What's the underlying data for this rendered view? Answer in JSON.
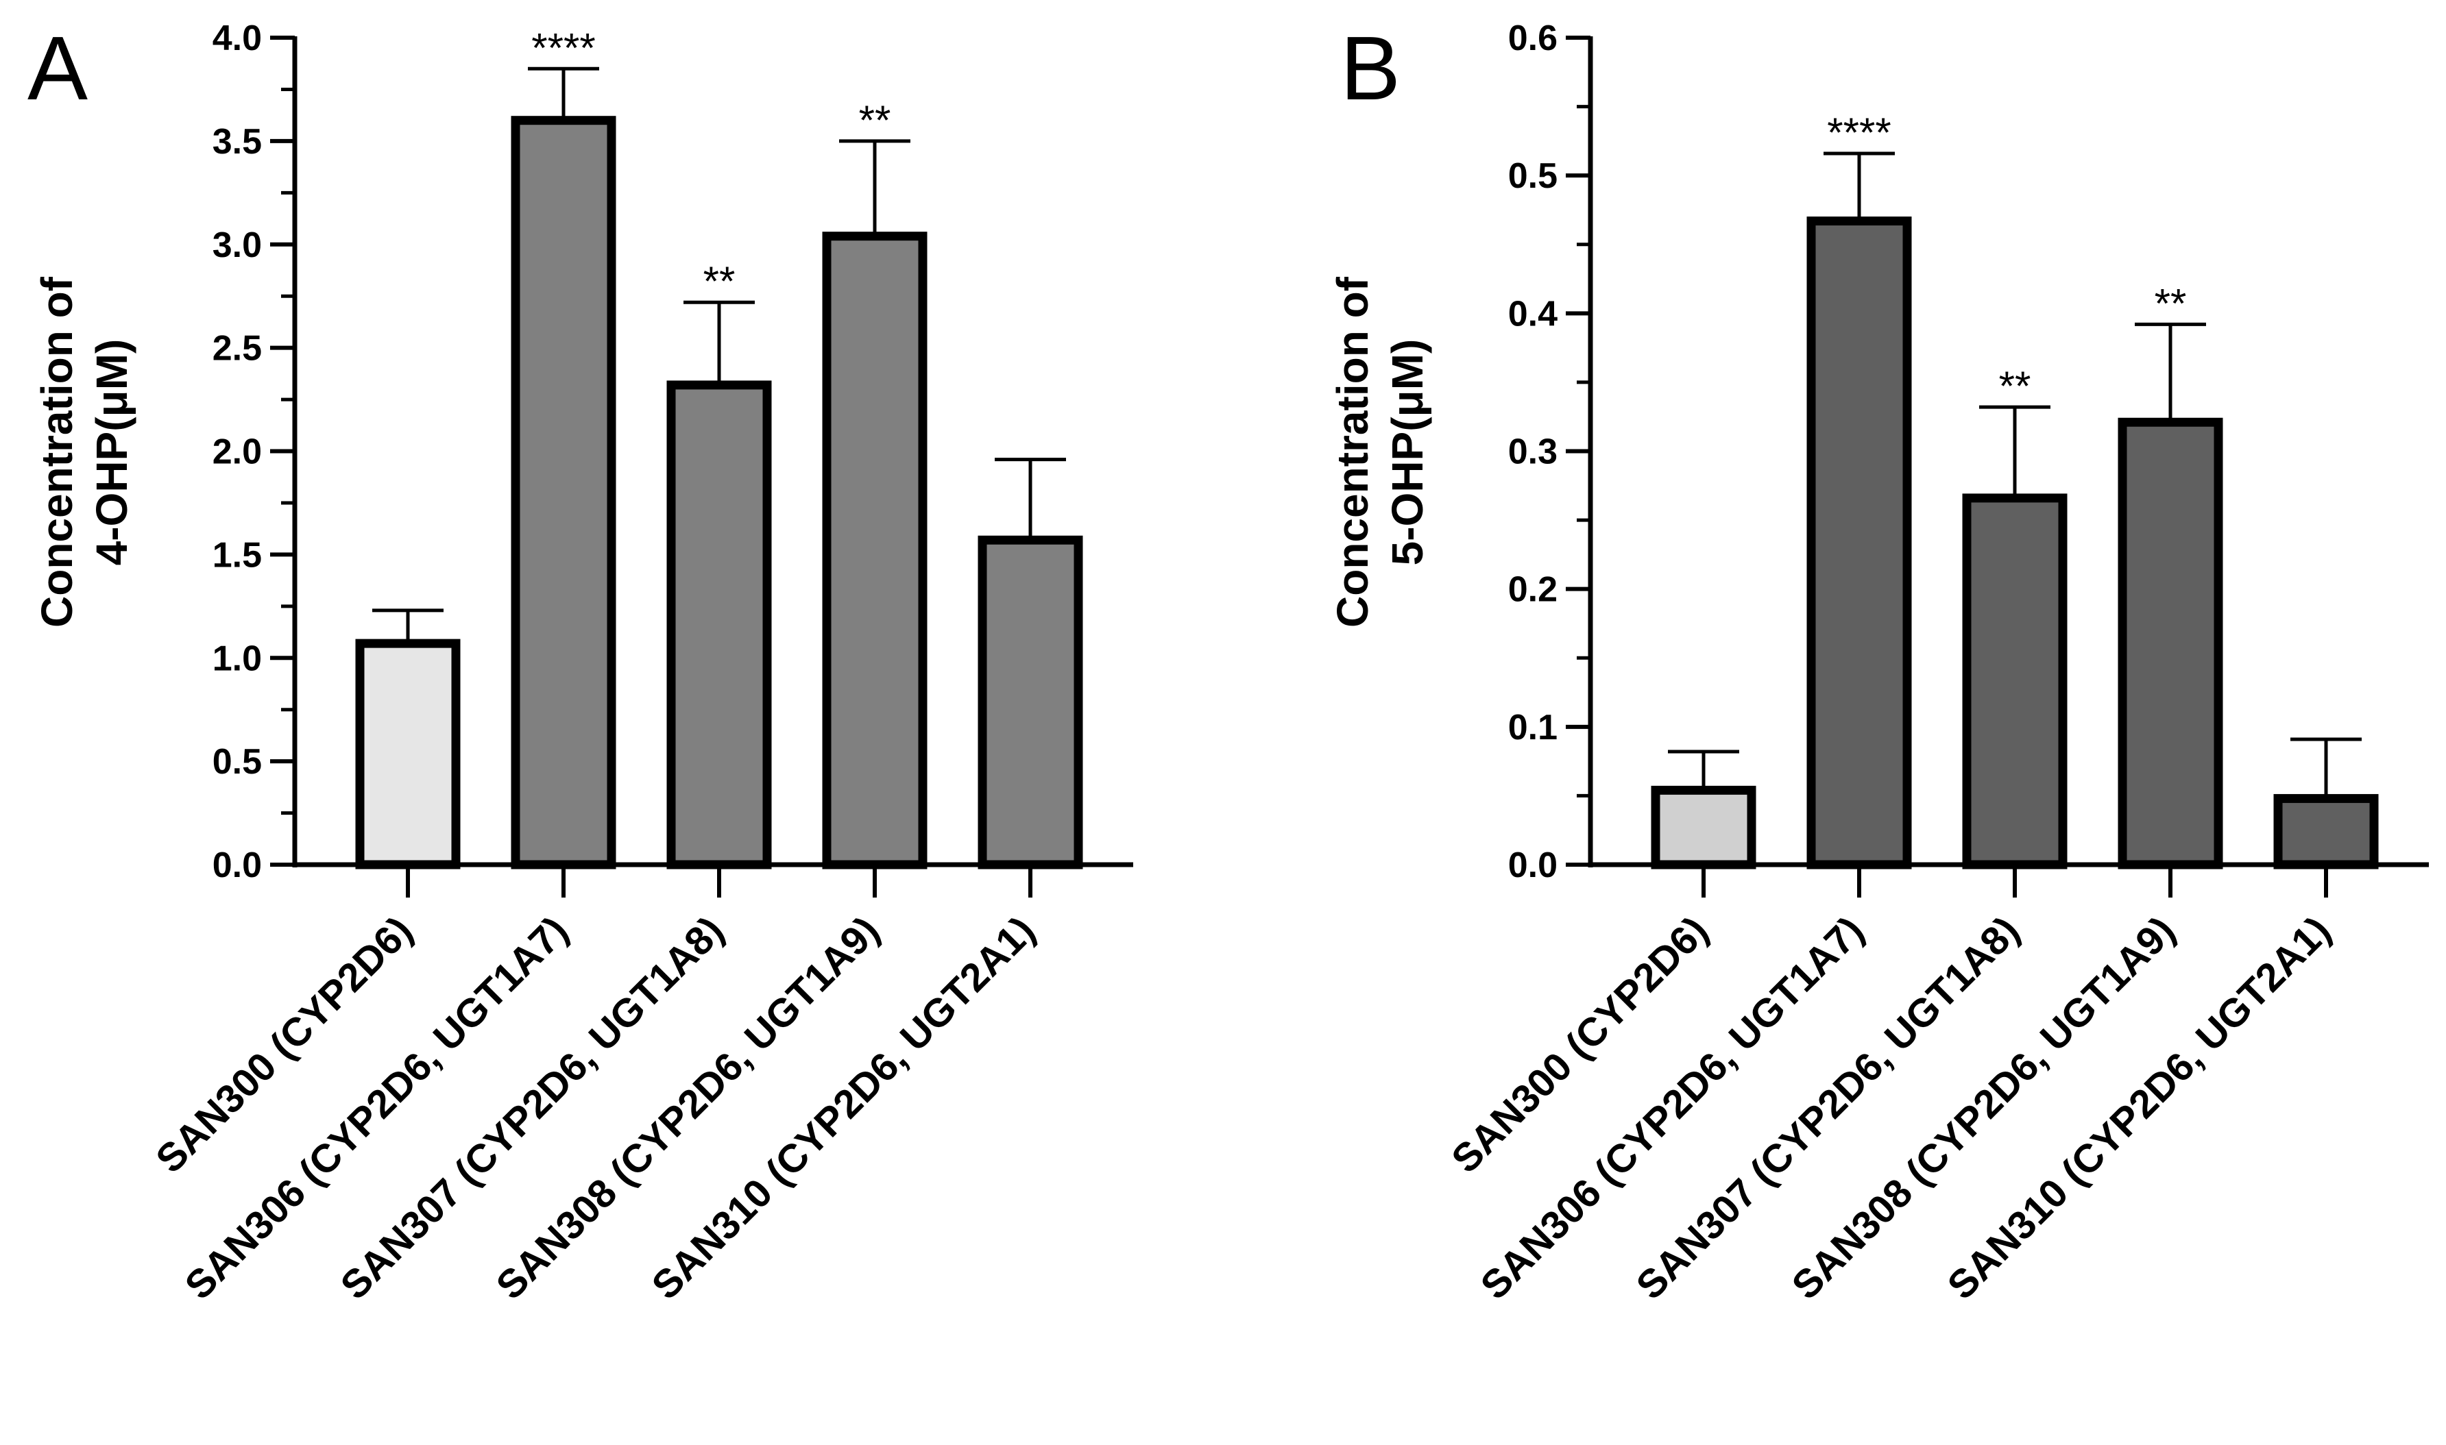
{
  "chart_data": [
    {
      "type": "bar",
      "panel_label": "A",
      "categories": [
        "SAN300 (CYP2D6)",
        "SAN306 (CYP2D6, UGT1A7)",
        "SAN307 (CYP2D6, UGT1A8)",
        "SAN308 (CYP2D6, UGT1A9)",
        "SAN310 (CYP2D6, UGT2A1)"
      ],
      "values": [
        1.07,
        3.6,
        2.32,
        3.04,
        1.57
      ],
      "errors": [
        0.16,
        0.25,
        0.4,
        0.46,
        0.39
      ],
      "significance": [
        "",
        "****",
        "**",
        "**",
        ""
      ],
      "bar_colors": [
        "#e6e6e6",
        "#808080",
        "#808080",
        "#808080",
        "#808080"
      ],
      "ylabel_line1": "Concentration of",
      "ylabel_line2": "4-OHP(μM)",
      "ylim": [
        0,
        4.0
      ],
      "yticks": [
        0.0,
        0.5,
        1.0,
        1.5,
        2.0,
        2.5,
        3.0,
        3.5,
        4.0
      ],
      "ytick_labels": [
        "0.0",
        "0.5",
        "1.0",
        "1.5",
        "2.0",
        "2.5",
        "3.0",
        "3.5",
        "4.0"
      ],
      "minor_ticks_per_major": 2,
      "grid": false
    },
    {
      "type": "bar",
      "panel_label": "B",
      "categories": [
        "SAN300 (CYP2D6)",
        "SAN306 (CYP2D6, UGT1A7)",
        "SAN307 (CYP2D6, UGT1A8)",
        "SAN308 (CYP2D6, UGT1A9)",
        "SAN310 (CYP2D6, UGT2A1)"
      ],
      "values": [
        0.054,
        0.467,
        0.266,
        0.321,
        0.048
      ],
      "errors": [
        0.028,
        0.049,
        0.066,
        0.071,
        0.043
      ],
      "significance": [
        "",
        "****",
        "**",
        "**",
        ""
      ],
      "bar_colors": [
        "#d0d0d0",
        "#606060",
        "#606060",
        "#606060",
        "#606060"
      ],
      "ylabel_line1": "Concentration of",
      "ylabel_line2": "5-OHP(μM)",
      "ylim": [
        0,
        0.6
      ],
      "yticks": [
        0.0,
        0.1,
        0.2,
        0.3,
        0.4,
        0.5,
        0.6
      ],
      "ytick_labels": [
        "0.0",
        "0.1",
        "0.2",
        "0.3",
        "0.4",
        "0.5",
        "0.6"
      ],
      "minor_ticks_per_major": 2,
      "grid": false
    }
  ]
}
